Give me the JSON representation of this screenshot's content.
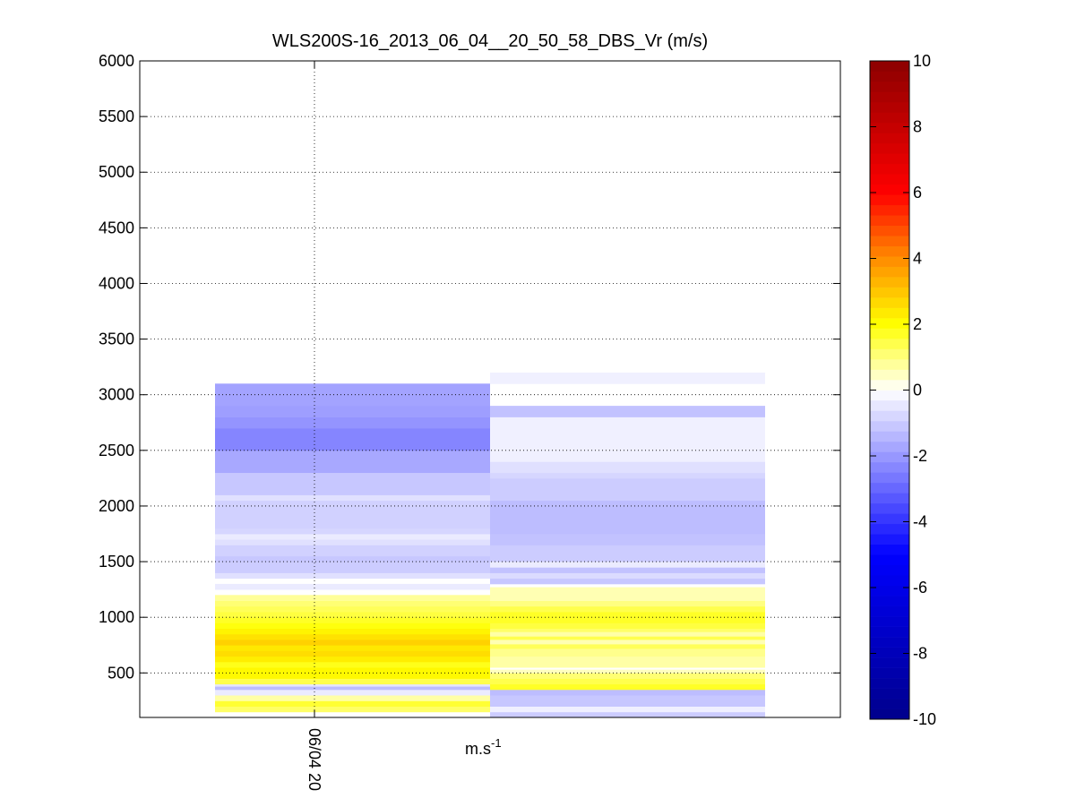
{
  "chart_data": {
    "type": "heatmap",
    "title": "WLS200S-16_2013_06_04__20_50_58_DBS_Vr (m/s)",
    "xlabel": "m.s",
    "xlabel_superscript": "-1",
    "x_tick_label": "06/04 20",
    "y_ticks": [
      500,
      1000,
      1500,
      2000,
      2500,
      3000,
      3500,
      4000,
      4500,
      5000,
      5500,
      6000
    ],
    "ylim": [
      100,
      6000
    ],
    "grid": true,
    "colorbar": {
      "ticks": [
        -10,
        -8,
        -6,
        -4,
        -2,
        0,
        2,
        4,
        6,
        8,
        10
      ],
      "clim": [
        -10,
        10
      ],
      "colormap": [
        "#00008b",
        "#0000ff",
        "#ffffff",
        "#ffff00",
        "#ff8c00",
        "#ff0000",
        "#8b0000"
      ]
    },
    "columns": [
      {
        "name": "",
        "cells": [
          {
            "y0": 150,
            "y1": 200,
            "v": 1.2
          },
          {
            "y0": 200,
            "y1": 250,
            "v": 1.6
          },
          {
            "y0": 250,
            "y1": 300,
            "v": 0.7
          },
          {
            "y0": 300,
            "y1": 350,
            "v": -0.4
          },
          {
            "y0": 350,
            "y1": 380,
            "v": -1.3
          },
          {
            "y0": 380,
            "y1": 400,
            "v": -0.5
          },
          {
            "y0": 400,
            "y1": 450,
            "v": 1.4
          },
          {
            "y0": 450,
            "y1": 550,
            "v": 2.1
          },
          {
            "y0": 550,
            "y1": 600,
            "v": 1.8
          },
          {
            "y0": 600,
            "y1": 650,
            "v": 2.3
          },
          {
            "y0": 650,
            "y1": 700,
            "v": 2.6
          },
          {
            "y0": 700,
            "y1": 750,
            "v": 2.4
          },
          {
            "y0": 750,
            "y1": 800,
            "v": 2.8
          },
          {
            "y0": 800,
            "y1": 850,
            "v": 2.5
          },
          {
            "y0": 850,
            "y1": 900,
            "v": 2.2
          },
          {
            "y0": 900,
            "y1": 950,
            "v": 1.9
          },
          {
            "y0": 950,
            "y1": 1000,
            "v": 1.7
          },
          {
            "y0": 1000,
            "y1": 1050,
            "v": 1.5
          },
          {
            "y0": 1050,
            "y1": 1100,
            "v": 1.3
          },
          {
            "y0": 1100,
            "y1": 1150,
            "v": 1.1
          },
          {
            "y0": 1150,
            "y1": 1200,
            "v": 0.8
          },
          {
            "y0": 1250,
            "y1": 1300,
            "v": -0.4
          },
          {
            "y0": 1350,
            "y1": 1400,
            "v": -0.6
          },
          {
            "y0": 1400,
            "y1": 1500,
            "v": -1.0
          },
          {
            "y0": 1500,
            "y1": 1550,
            "v": -1.1
          },
          {
            "y0": 1550,
            "y1": 1650,
            "v": -0.9
          },
          {
            "y0": 1650,
            "y1": 1700,
            "v": -0.6
          },
          {
            "y0": 1700,
            "y1": 1750,
            "v": -0.4
          },
          {
            "y0": 1750,
            "y1": 1800,
            "v": -0.8
          },
          {
            "y0": 1800,
            "y1": 2050,
            "v": -0.9
          },
          {
            "y0": 2050,
            "y1": 2100,
            "v": -0.6
          },
          {
            "y0": 2100,
            "y1": 2300,
            "v": -1.1
          },
          {
            "y0": 2300,
            "y1": 2500,
            "v": -1.7
          },
          {
            "y0": 2500,
            "y1": 2700,
            "v": -2.4
          },
          {
            "y0": 2700,
            "y1": 2800,
            "v": -2.1
          },
          {
            "y0": 2800,
            "y1": 2900,
            "v": -1.9
          },
          {
            "y0": 2900,
            "y1": 3100,
            "v": -1.8
          }
        ]
      },
      {
        "name": "",
        "cells": [
          {
            "y0": 100,
            "y1": 150,
            "v": -1.0
          },
          {
            "y0": 150,
            "y1": 200,
            "v": -0.3
          },
          {
            "y0": 200,
            "y1": 300,
            "v": -1.1
          },
          {
            "y0": 300,
            "y1": 350,
            "v": -1.3
          },
          {
            "y0": 350,
            "y1": 400,
            "v": 1.7
          },
          {
            "y0": 400,
            "y1": 450,
            "v": 1.4
          },
          {
            "y0": 450,
            "y1": 500,
            "v": 1.1
          },
          {
            "y0": 500,
            "y1": 530,
            "v": 0.5
          },
          {
            "y0": 550,
            "y1": 650,
            "v": 0.7
          },
          {
            "y0": 650,
            "y1": 720,
            "v": 0.9
          },
          {
            "y0": 720,
            "y1": 760,
            "v": 1.3
          },
          {
            "y0": 760,
            "y1": 800,
            "v": 0.6
          },
          {
            "y0": 800,
            "y1": 830,
            "v": 1.4
          },
          {
            "y0": 830,
            "y1": 870,
            "v": 0.7
          },
          {
            "y0": 870,
            "y1": 900,
            "v": 1.2
          },
          {
            "y0": 900,
            "y1": 950,
            "v": 1.5
          },
          {
            "y0": 950,
            "y1": 1050,
            "v": 1.7
          },
          {
            "y0": 1050,
            "y1": 1100,
            "v": 1.4
          },
          {
            "y0": 1100,
            "y1": 1150,
            "v": 1.0
          },
          {
            "y0": 1150,
            "y1": 1270,
            "v": 0.6
          },
          {
            "y0": 1300,
            "y1": 1350,
            "v": -1.1
          },
          {
            "y0": 1350,
            "y1": 1400,
            "v": -0.7
          },
          {
            "y0": 1400,
            "y1": 1450,
            "v": -1.2
          },
          {
            "y0": 1450,
            "y1": 1500,
            "v": -0.4
          },
          {
            "y0": 1500,
            "y1": 1650,
            "v": -1.0
          },
          {
            "y0": 1650,
            "y1": 1750,
            "v": -1.2
          },
          {
            "y0": 1750,
            "y1": 2050,
            "v": -1.3
          },
          {
            "y0": 2050,
            "y1": 2250,
            "v": -1.0
          },
          {
            "y0": 2250,
            "y1": 2300,
            "v": -0.8
          },
          {
            "y0": 2300,
            "y1": 2400,
            "v": -0.6
          },
          {
            "y0": 2400,
            "y1": 2800,
            "v": -0.3
          },
          {
            "y0": 2800,
            "y1": 2900,
            "v": -1.2
          },
          {
            "y0": 3100,
            "y1": 3200,
            "v": -0.3
          }
        ]
      }
    ]
  }
}
